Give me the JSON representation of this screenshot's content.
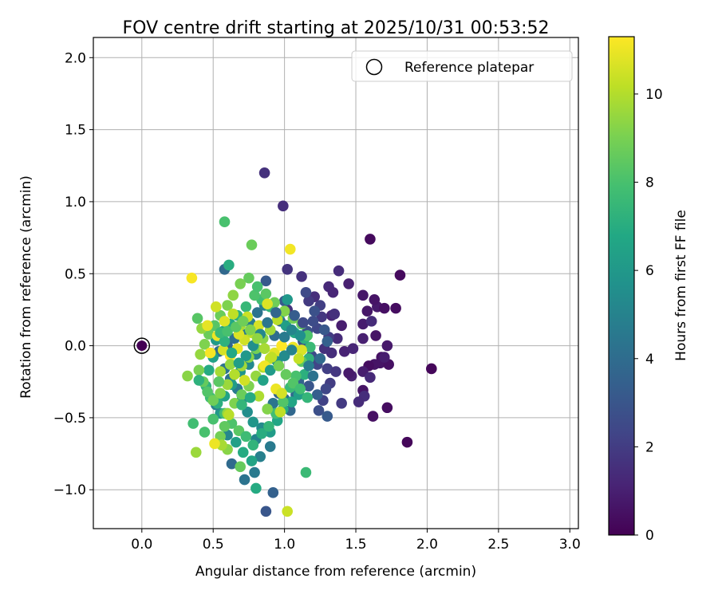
{
  "chart_data": {
    "type": "scatter",
    "title": "FOV centre drift starting at 2025/10/31 00:53:52",
    "xlabel": "Angular distance from reference (arcmin)",
    "ylabel": "Rotation from reference (arcmin)",
    "xlim": [
      -0.34,
      3.06
    ],
    "ylim": [
      -1.27,
      2.14
    ],
    "xticks": [
      0.0,
      0.5,
      1.0,
      1.5,
      2.0,
      2.5,
      3.0
    ],
    "xtick_labels": [
      "0.0",
      "0.5",
      "1.0",
      "1.5",
      "2.0",
      "2.5",
      "3.0"
    ],
    "yticks": [
      -1.0,
      -0.5,
      0.0,
      0.5,
      1.0,
      1.5,
      2.0
    ],
    "ytick_labels": [
      "−1.0",
      "−0.5",
      "0.0",
      "0.5",
      "1.0",
      "1.5",
      "2.0"
    ],
    "grid": true,
    "legend": {
      "placement": "top-right",
      "entries": [
        "Reference platepar"
      ]
    },
    "reference_point": {
      "x": 0.0,
      "y": 0.0,
      "label": "Reference platepar"
    },
    "colorbar": {
      "label": "Hours from first FF file",
      "colormap": "viridis",
      "range": [
        0,
        11.3
      ],
      "ticks": [
        0,
        2,
        4,
        6,
        8,
        10
      ],
      "tick_labels": [
        "0",
        "2",
        "4",
        "6",
        "8",
        "10"
      ]
    },
    "point_columns": [
      "x",
      "y",
      "hours"
    ],
    "points": [
      [
        1.6,
        0.74,
        0.3
      ],
      [
        1.81,
        0.49,
        0.3
      ],
      [
        2.03,
        -0.16,
        0.2
      ],
      [
        1.86,
        -0.67,
        0.2
      ],
      [
        1.72,
        -0.43,
        0.4
      ],
      [
        1.62,
        -0.49,
        0.5
      ],
      [
        1.55,
        -0.31,
        0.6
      ],
      [
        1.45,
        0.43,
        1.0
      ],
      [
        1.38,
        0.52,
        1.4
      ],
      [
        1.31,
        0.41,
        1.3
      ],
      [
        1.55,
        0.35,
        0.7
      ],
      [
        1.58,
        0.24,
        0.7
      ],
      [
        1.65,
        0.27,
        0.8
      ],
      [
        1.63,
        0.32,
        0.6
      ],
      [
        1.7,
        0.26,
        0.5
      ],
      [
        1.78,
        0.26,
        0.4
      ],
      [
        1.55,
        0.15,
        0.9
      ],
      [
        1.61,
        0.17,
        1.4
      ],
      [
        1.64,
        0.07,
        0.6
      ],
      [
        1.72,
        0.0,
        0.8
      ],
      [
        1.68,
        -0.08,
        0.5
      ],
      [
        1.67,
        -0.12,
        0.6
      ],
      [
        1.63,
        -0.13,
        0.6
      ],
      [
        1.59,
        -0.14,
        0.4
      ],
      [
        1.73,
        -0.13,
        0.5
      ],
      [
        1.7,
        -0.08,
        0.9
      ],
      [
        1.55,
        -0.18,
        0.9
      ],
      [
        1.6,
        -0.22,
        1.3
      ],
      [
        1.56,
        -0.35,
        1.5
      ],
      [
        1.52,
        -0.39,
        1.4
      ],
      [
        1.47,
        -0.21,
        1.0
      ],
      [
        1.45,
        -0.19,
        0.8
      ],
      [
        1.42,
        -0.04,
        1.1
      ],
      [
        1.48,
        -0.02,
        1.2
      ],
      [
        1.55,
        0.05,
        1.0
      ],
      [
        1.4,
        0.14,
        0.9
      ],
      [
        1.33,
        0.21,
        1.2
      ],
      [
        1.26,
        0.2,
        1.8
      ],
      [
        1.25,
        0.28,
        2.1
      ],
      [
        1.21,
        0.34,
        1.5
      ],
      [
        1.17,
        0.31,
        1.9
      ],
      [
        1.15,
        0.37,
        2.5
      ],
      [
        1.12,
        0.48,
        1.6
      ],
      [
        1.34,
        0.37,
        1.2
      ],
      [
        1.35,
        0.22,
        1.6
      ],
      [
        1.37,
        0.05,
        1.4
      ],
      [
        1.33,
        -0.05,
        1.5
      ],
      [
        1.28,
        -0.02,
        1.6
      ],
      [
        1.31,
        0.06,
        2.0
      ],
      [
        1.23,
        0.12,
        2.4
      ],
      [
        1.2,
        0.17,
        2.6
      ],
      [
        1.16,
        0.1,
        2.8
      ],
      [
        1.13,
        0.03,
        3.0
      ],
      [
        1.19,
        -0.07,
        2.6
      ],
      [
        1.23,
        -0.13,
        2.3
      ],
      [
        1.3,
        -0.16,
        2.1
      ],
      [
        1.36,
        -0.18,
        1.8
      ],
      [
        1.32,
        -0.26,
        2.0
      ],
      [
        1.29,
        -0.3,
        2.4
      ],
      [
        1.27,
        -0.38,
        2.2
      ],
      [
        1.24,
        -0.45,
        2.7
      ],
      [
        1.4,
        -0.4,
        1.9
      ],
      [
        1.3,
        -0.49,
        3.2
      ],
      [
        1.23,
        -0.34,
        3.4
      ],
      [
        1.17,
        -0.28,
        3.0
      ],
      [
        1.1,
        -0.25,
        3.6
      ],
      [
        1.08,
        -0.34,
        3.9
      ],
      [
        1.04,
        -0.45,
        3.8
      ],
      [
        1.0,
        -0.37,
        4.1
      ],
      [
        0.96,
        -0.33,
        3.6
      ],
      [
        0.92,
        -0.4,
        4.4
      ],
      [
        1.02,
        0.25,
        1.7
      ],
      [
        1.0,
        0.31,
        3.2
      ],
      [
        0.97,
        0.17,
        3.6
      ],
      [
        0.93,
        0.07,
        4.0
      ],
      [
        1.02,
        0.53,
        1.7
      ],
      [
        0.87,
        0.45,
        3.2
      ],
      [
        0.86,
        1.2,
        1.6
      ],
      [
        0.99,
        0.97,
        1.5
      ],
      [
        0.58,
        0.53,
        3.8
      ],
      [
        0.92,
        -1.02,
        3.5
      ],
      [
        0.87,
        -1.15,
        3.0
      ],
      [
        0.72,
        -0.93,
        4.3
      ],
      [
        0.63,
        -0.82,
        3.9
      ],
      [
        0.79,
        -0.88,
        4.6
      ],
      [
        0.83,
        -0.77,
        4.9
      ],
      [
        0.9,
        -0.7,
        4.6
      ],
      [
        0.8,
        -0.65,
        5.0
      ],
      [
        0.84,
        -0.57,
        5.4
      ],
      [
        0.78,
        -0.53,
        5.9
      ],
      [
        0.74,
        -0.46,
        5.5
      ],
      [
        0.7,
        -0.38,
        5.0
      ],
      [
        0.67,
        -0.3,
        4.6
      ],
      [
        0.62,
        -0.23,
        4.2
      ],
      [
        0.58,
        -0.16,
        4.3
      ],
      [
        0.54,
        -0.04,
        4.0
      ],
      [
        0.6,
        0.0,
        3.7
      ],
      [
        0.65,
        0.05,
        4.1
      ],
      [
        0.71,
        0.08,
        4.5
      ],
      [
        0.76,
        0.16,
        4.8
      ],
      [
        0.81,
        0.23,
        4.3
      ],
      [
        0.86,
        0.28,
        4.9
      ],
      [
        0.8,
        -0.06,
        5.0
      ],
      [
        0.75,
        -0.13,
        5.3
      ],
      [
        0.69,
        -0.18,
        5.8
      ],
      [
        0.63,
        -0.27,
        6.2
      ],
      [
        0.58,
        -0.35,
        6.5
      ],
      [
        0.55,
        -0.47,
        6.0
      ],
      [
        0.52,
        -0.41,
        4.8
      ],
      [
        0.6,
        -0.62,
        5.2
      ],
      [
        0.66,
        -0.67,
        6.4
      ],
      [
        0.71,
        -0.74,
        6.9
      ],
      [
        0.77,
        -0.8,
        6.6
      ],
      [
        0.8,
        -0.99,
        6.9
      ],
      [
        0.9,
        -0.6,
        6.2
      ],
      [
        0.95,
        -0.52,
        6.7
      ],
      [
        0.99,
        -0.44,
        7.0
      ],
      [
        1.05,
        -0.39,
        6.7
      ],
      [
        1.1,
        -0.34,
        6.3
      ],
      [
        1.14,
        -0.2,
        7.1
      ],
      [
        1.17,
        -0.09,
        7.3
      ],
      [
        1.18,
        -0.01,
        7.6
      ],
      [
        1.14,
        0.05,
        7.2
      ],
      [
        1.07,
        0.09,
        6.8
      ],
      [
        1.01,
        0.14,
        6.3
      ],
      [
        0.96,
        0.21,
        6.9
      ],
      [
        0.9,
        0.27,
        7.4
      ],
      [
        0.84,
        0.32,
        7.8
      ],
      [
        0.79,
        0.35,
        8.1
      ],
      [
        0.73,
        0.27,
        7.5
      ],
      [
        0.67,
        0.21,
        7.1
      ],
      [
        0.62,
        0.15,
        6.8
      ],
      [
        0.57,
        0.1,
        6.5
      ],
      [
        0.52,
        0.04,
        6.1
      ],
      [
        0.5,
        -0.08,
        6.5
      ],
      [
        0.47,
        -0.17,
        6.9
      ],
      [
        0.45,
        -0.28,
        7.3
      ],
      [
        0.48,
        -0.36,
        7.7
      ],
      [
        0.53,
        -0.4,
        7.1
      ],
      [
        0.58,
        -0.47,
        7.8
      ],
      [
        0.63,
        -0.54,
        8.1
      ],
      [
        0.68,
        -0.59,
        8.4
      ],
      [
        0.73,
        -0.63,
        7.7
      ],
      [
        0.78,
        -0.69,
        7.3
      ],
      [
        0.84,
        -0.61,
        7.0
      ],
      [
        0.89,
        -0.56,
        7.4
      ],
      [
        0.94,
        -0.47,
        7.8
      ],
      [
        0.99,
        -0.39,
        8.2
      ],
      [
        1.04,
        -0.29,
        7.6
      ],
      [
        1.08,
        -0.21,
        8.0
      ],
      [
        1.12,
        -0.11,
        8.4
      ],
      [
        1.16,
        0.07,
        8.1
      ],
      [
        1.12,
        0.15,
        8.6
      ],
      [
        1.06,
        0.19,
        8.9
      ],
      [
        1.0,
        0.24,
        9.2
      ],
      [
        0.93,
        0.3,
        8.8
      ],
      [
        0.87,
        0.36,
        8.4
      ],
      [
        0.81,
        0.41,
        8.0
      ],
      [
        0.75,
        0.47,
        8.6
      ],
      [
        0.69,
        0.43,
        9.0
      ],
      [
        0.64,
        0.35,
        9.4
      ],
      [
        0.6,
        0.28,
        9.1
      ],
      [
        0.55,
        0.21,
        8.7
      ],
      [
        0.51,
        0.14,
        8.3
      ],
      [
        0.47,
        0.08,
        8.7
      ],
      [
        0.44,
        0.01,
        9.1
      ],
      [
        0.41,
        -0.06,
        9.5
      ],
      [
        0.4,
        -0.17,
        9.0
      ],
      [
        0.43,
        -0.25,
        8.6
      ],
      [
        0.46,
        -0.32,
        8.2
      ],
      [
        0.5,
        -0.38,
        8.8
      ],
      [
        0.55,
        -0.33,
        9.2
      ],
      [
        0.6,
        -0.27,
        9.6
      ],
      [
        0.65,
        -0.2,
        10.0
      ],
      [
        0.7,
        -0.14,
        9.7
      ],
      [
        0.75,
        -0.08,
        9.3
      ],
      [
        0.8,
        -0.02,
        8.9
      ],
      [
        0.85,
        0.05,
        9.3
      ],
      [
        0.9,
        0.11,
        9.7
      ],
      [
        0.95,
        0.18,
        10.1
      ],
      [
        0.9,
        -0.09,
        10.3
      ],
      [
        0.85,
        -0.15,
        9.9
      ],
      [
        0.8,
        -0.21,
        9.5
      ],
      [
        0.75,
        -0.28,
        9.1
      ],
      [
        0.7,
        -0.34,
        8.7
      ],
      [
        0.65,
        -0.4,
        9.1
      ],
      [
        0.6,
        -0.47,
        9.5
      ],
      [
        0.58,
        -0.56,
        8.5
      ],
      [
        0.55,
        -0.63,
        8.9
      ],
      [
        0.6,
        -0.72,
        9.3
      ],
      [
        0.56,
        -0.69,
        9.8
      ],
      [
        0.44,
        -0.6,
        8.0
      ],
      [
        0.36,
        -0.54,
        7.8
      ],
      [
        0.38,
        -0.74,
        9.6
      ],
      [
        0.32,
        -0.21,
        9.3
      ],
      [
        0.4,
        -0.24,
        7.2
      ],
      [
        0.39,
        0.19,
        8.3
      ],
      [
        0.42,
        0.12,
        9.5
      ],
      [
        0.58,
        0.86,
        8.0
      ],
      [
        0.77,
        0.7,
        8.7
      ],
      [
        0.61,
        0.56,
        7.0
      ],
      [
        0.69,
        -0.84,
        8.6
      ],
      [
        1.15,
        -0.88,
        7.6
      ],
      [
        1.02,
        0.32,
        6.0
      ],
      [
        0.88,
        0.29,
        10.7
      ],
      [
        1.04,
        0.67,
        11.1
      ],
      [
        0.35,
        0.47,
        11.2
      ],
      [
        0.51,
        -0.68,
        11.0
      ],
      [
        1.02,
        -1.15,
        10.4
      ],
      [
        0.46,
        0.14,
        10.9
      ],
      [
        0.52,
        0.27,
        10.5
      ],
      [
        0.58,
        0.17,
        10.8
      ],
      [
        0.53,
        0.07,
        11.0
      ],
      [
        0.48,
        -0.05,
        11.2
      ],
      [
        0.57,
        -0.03,
        10.6
      ],
      [
        0.62,
        -0.07,
        11.3
      ],
      [
        0.67,
        -0.02,
        10.9
      ],
      [
        0.72,
        0.04,
        10.5
      ],
      [
        0.77,
        0.09,
        10.1
      ],
      [
        0.82,
        0.14,
        10.6
      ],
      [
        0.64,
        0.22,
        10.2
      ],
      [
        0.69,
        0.14,
        9.8
      ],
      [
        0.74,
        0.2,
        10.4
      ],
      [
        0.68,
        0.08,
        10.7
      ],
      [
        0.86,
        -0.14,
        11.1
      ],
      [
        0.93,
        -0.05,
        10.8
      ],
      [
        0.98,
        0.0,
        11.3
      ],
      [
        1.06,
        -0.01,
        11.0
      ],
      [
        1.12,
        -0.03,
        10.7
      ],
      [
        1.1,
        -0.09,
        10.3
      ],
      [
        0.94,
        -0.3,
        11.0
      ],
      [
        0.98,
        -0.33,
        10.6
      ],
      [
        0.97,
        -0.46,
        10.2
      ],
      [
        0.61,
        -0.48,
        10.1
      ],
      [
        0.55,
        -0.18,
        9.8
      ],
      [
        0.62,
        -0.13,
        9.5
      ],
      [
        0.72,
        -0.24,
        10.5
      ],
      [
        0.82,
        -0.35,
        9.9
      ],
      [
        0.88,
        -0.44,
        9.2
      ],
      [
        0.5,
        -0.51,
        8.0
      ],
      [
        0.54,
        -0.25,
        8.4
      ],
      [
        0.7,
        -0.41,
        7.4
      ],
      [
        0.76,
        -0.36,
        6.9
      ],
      [
        0.85,
        -0.24,
        6.5
      ],
      [
        0.9,
        -0.17,
        6.1
      ],
      [
        0.95,
        -0.11,
        5.8
      ],
      [
        1.0,
        -0.07,
        5.4
      ],
      [
        1.05,
        -0.03,
        5.0
      ],
      [
        1.0,
        0.06,
        4.6
      ],
      [
        1.05,
        0.11,
        5.1
      ],
      [
        1.11,
        0.07,
        5.6
      ],
      [
        1.17,
        -0.14,
        4.7
      ],
      [
        1.2,
        -0.21,
        4.3
      ],
      [
        1.25,
        -0.09,
        3.9
      ],
      [
        1.3,
        0.03,
        3.5
      ],
      [
        1.28,
        0.11,
        3.1
      ],
      [
        1.21,
        0.24,
        2.8
      ],
      [
        1.13,
        0.16,
        2.5
      ],
      [
        1.07,
        0.21,
        3.3
      ],
      [
        0.94,
        0.23,
        3.7
      ],
      [
        0.88,
        0.16,
        4.4
      ],
      [
        0.83,
        0.08,
        5.2
      ],
      [
        0.78,
        0.0,
        5.6
      ],
      [
        0.73,
        -0.07,
        6.0
      ],
      [
        0.68,
        -0.12,
        6.3
      ],
      [
        0.63,
        -0.05,
        6.8
      ],
      [
        0.58,
        0.03,
        7.2
      ],
      [
        0.55,
        0.09,
        7.6
      ],
      [
        0.6,
        0.1,
        8.0
      ],
      [
        0.66,
        0.13,
        8.4
      ],
      [
        0.71,
        0.17,
        8.8
      ],
      [
        0.76,
        0.11,
        9.1
      ],
      [
        0.81,
        0.05,
        9.4
      ],
      [
        0.86,
        -0.02,
        9.8
      ],
      [
        0.91,
        -0.08,
        10.2
      ],
      [
        0.96,
        -0.14,
        9.0
      ],
      [
        1.01,
        -0.2,
        8.6
      ],
      [
        1.06,
        -0.26,
        8.2
      ],
      [
        1.11,
        -0.3,
        7.8
      ],
      [
        1.16,
        -0.36,
        7.4
      ]
    ]
  }
}
